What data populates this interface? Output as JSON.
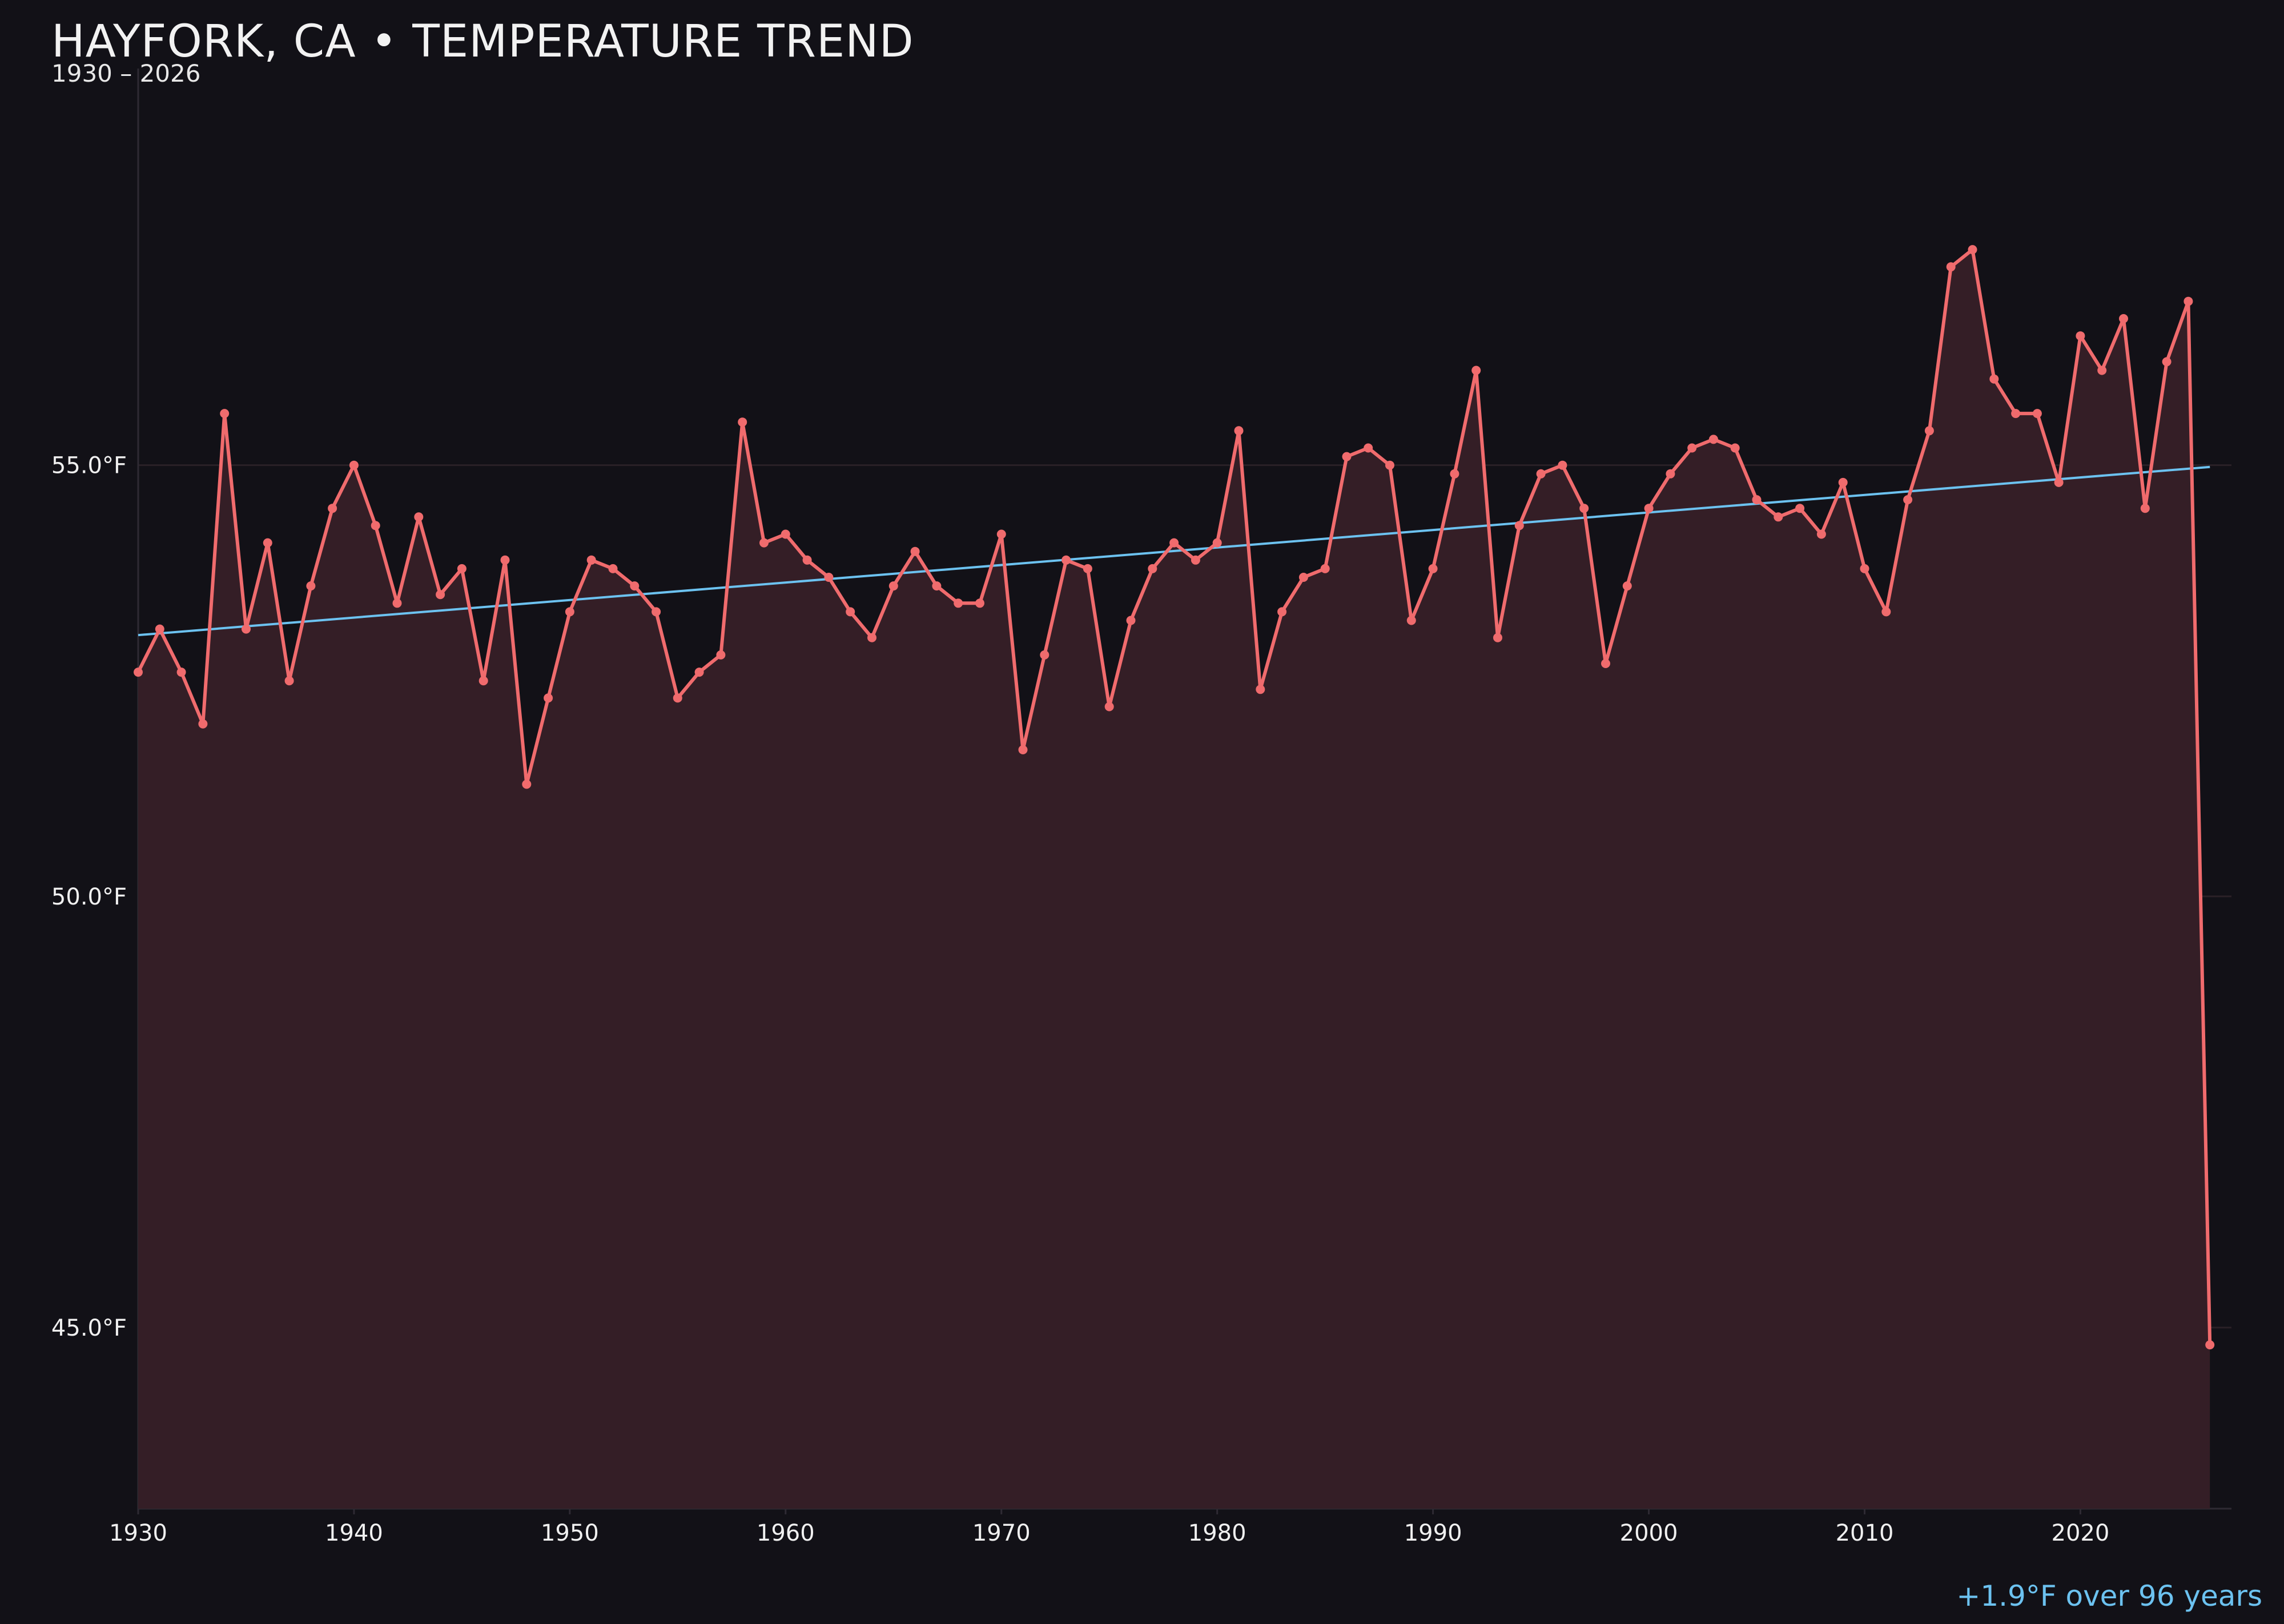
{
  "header": {
    "title": "HAYFORK, CA • TEMPERATURE TREND",
    "subtitle": "1930 – 2026"
  },
  "footer": {
    "trend_note": "+1.9°F over 96 years"
  },
  "chart_data": {
    "type": "line",
    "title": "HAYFORK, CA • TEMPERATURE TREND",
    "subtitle": "1930 – 2026",
    "xlabel": "",
    "ylabel": "",
    "xlim": [
      1930,
      2027
    ],
    "ylim": [
      42.9,
      59.6
    ],
    "x_ticks": [
      1930,
      1940,
      1950,
      1960,
      1970,
      1980,
      1990,
      2000,
      2010,
      2020
    ],
    "x_tick_labels": [
      "1930",
      "1940",
      "1950",
      "1960",
      "1970",
      "1980",
      "1990",
      "2000",
      "2010",
      "2020"
    ],
    "y_ticks": [
      45,
      50,
      55
    ],
    "y_tick_labels": [
      "45.0°F",
      "50.0°F",
      "55.0°F"
    ],
    "grid": "horizontal",
    "colors": {
      "series": "#f06b6d",
      "area_fill": "#341e26",
      "trend": "#6cc2f0",
      "background": "#121117",
      "grid": "#2a2127"
    },
    "series": [
      {
        "x": [
          1930,
          1931,
          1932,
          1933,
          1934,
          1935,
          1936,
          1937,
          1938,
          1939,
          1940,
          1941,
          1942,
          1943,
          1944,
          1945,
          1946,
          1947,
          1948,
          1949,
          1950,
          1951,
          1952,
          1953,
          1954,
          1955,
          1956,
          1957,
          1958,
          1959,
          1960,
          1961,
          1962,
          1963,
          1964,
          1965,
          1966,
          1967,
          1968,
          1969,
          1970,
          1971,
          1972,
          1973,
          1974,
          1975,
          1976,
          1977,
          1978,
          1979,
          1980,
          1981,
          1982,
          1983,
          1984,
          1985,
          1986,
          1987,
          1988,
          1989,
          1990,
          1991,
          1992,
          1993,
          1994,
          1995,
          1996,
          1997,
          1998,
          1999,
          2000,
          2001,
          2002,
          2003,
          2004,
          2005,
          2006,
          2007,
          2008,
          2009,
          2010,
          2011,
          2012,
          2013,
          2014,
          2015,
          2016,
          2017,
          2018,
          2019,
          2020,
          2021,
          2022,
          2023,
          2024,
          2025,
          2026
        ],
        "values": [
          52.6,
          53.1,
          52.6,
          52.0,
          55.6,
          53.1,
          54.1,
          52.5,
          53.6,
          54.5,
          55.0,
          54.3,
          53.4,
          54.4,
          53.5,
          53.8,
          52.5,
          53.9,
          51.3,
          52.3,
          53.3,
          53.9,
          53.8,
          53.6,
          53.3,
          52.3,
          52.6,
          52.8,
          55.5,
          54.1,
          54.2,
          53.9,
          53.7,
          53.3,
          53.0,
          53.6,
          54.0,
          53.6,
          53.4,
          53.4,
          54.2,
          51.7,
          52.8,
          53.9,
          53.8,
          52.2,
          53.2,
          53.8,
          54.1,
          53.9,
          54.1,
          55.4,
          52.4,
          53.3,
          53.7,
          53.8,
          55.1,
          55.2,
          55.0,
          53.2,
          53.8,
          54.9,
          56.1,
          53.0,
          54.3,
          54.9,
          55.0,
          54.5,
          52.7,
          53.6,
          54.5,
          54.9,
          55.2,
          55.3,
          55.2,
          54.6,
          54.4,
          54.5,
          54.2,
          54.8,
          53.8,
          53.3,
          54.6,
          55.4,
          57.3,
          57.5,
          56.0,
          55.6,
          55.6,
          54.8,
          56.5,
          56.1,
          56.7,
          54.5,
          56.2,
          56.9,
          44.8
        ]
      }
    ],
    "trendline": {
      "x": [
        1930,
        2026
      ],
      "y": [
        53.03,
        54.98
      ]
    },
    "annotation": "+1.9°F over 96 years"
  }
}
